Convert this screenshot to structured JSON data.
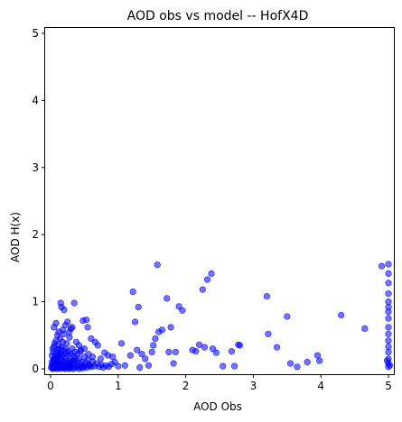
{
  "chart_data": {
    "type": "scatter",
    "title": "AOD obs vs model -- HofX4D",
    "xlabel": "AOD Obs",
    "ylabel": "AOD H(x)",
    "xlim": [
      -0.08,
      5.08
    ],
    "ylim": [
      -0.08,
      5.08
    ],
    "xticks": [
      "0",
      "1",
      "2",
      "3",
      "4",
      "5"
    ],
    "yticks": [
      "0",
      "1",
      "2",
      "3",
      "4",
      "5"
    ],
    "grid": false,
    "marker_color": "#0000ff",
    "marker_alpha": 0.55,
    "series": [
      {
        "points": [
          [
            0.01,
            0.02
          ],
          [
            0.02,
            0.05
          ],
          [
            0.03,
            0.01
          ],
          [
            0.04,
            0.08
          ],
          [
            0.05,
            0.03
          ],
          [
            0.06,
            0.12
          ],
          [
            0.07,
            0.04
          ],
          [
            0.08,
            0.15
          ],
          [
            0.09,
            0.06
          ],
          [
            0.1,
            0.02
          ],
          [
            0.11,
            0.09
          ],
          [
            0.12,
            0.18
          ],
          [
            0.13,
            0.05
          ],
          [
            0.14,
            0.11
          ],
          [
            0.15,
            0.03
          ],
          [
            0.16,
            0.22
          ],
          [
            0.17,
            0.07
          ],
          [
            0.18,
            0.13
          ],
          [
            0.19,
            0.04
          ],
          [
            0.2,
            0.1
          ],
          [
            0.21,
            0.02
          ],
          [
            0.22,
            0.16
          ],
          [
            0.23,
            0.06
          ],
          [
            0.24,
            0.09
          ],
          [
            0.25,
            0.03
          ],
          [
            0.26,
            0.12
          ],
          [
            0.27,
            0.05
          ],
          [
            0.28,
            0.08
          ],
          [
            0.29,
            0.02
          ],
          [
            0.3,
            0.11
          ],
          [
            0.02,
            0.2
          ],
          [
            0.04,
            0.25
          ],
          [
            0.03,
            0.3
          ],
          [
            0.05,
            0.33
          ],
          [
            0.06,
            0.38
          ],
          [
            0.08,
            0.42
          ],
          [
            0.1,
            0.28
          ],
          [
            0.12,
            0.35
          ],
          [
            0.14,
            0.45
          ],
          [
            0.16,
            0.32
          ],
          [
            0.18,
            0.4
          ],
          [
            0.2,
            0.52
          ],
          [
            0.22,
            0.3
          ],
          [
            0.24,
            0.38
          ],
          [
            0.26,
            0.26
          ],
          [
            0.28,
            0.47
          ],
          [
            0.3,
            0.22
          ],
          [
            0.32,
            0.3
          ],
          [
            0.34,
            0.18
          ],
          [
            0.36,
            0.25
          ],
          [
            0.03,
            0.0
          ],
          [
            0.06,
            0.01
          ],
          [
            0.09,
            0.0
          ],
          [
            0.12,
            0.01
          ],
          [
            0.15,
            0.0
          ],
          [
            0.18,
            0.02
          ],
          [
            0.21,
            0.0
          ],
          [
            0.24,
            0.01
          ],
          [
            0.27,
            0.0
          ],
          [
            0.3,
            0.02
          ],
          [
            0.33,
            0.0
          ],
          [
            0.36,
            0.01
          ],
          [
            0.39,
            0.03
          ],
          [
            0.42,
            0.0
          ],
          [
            0.45,
            0.02
          ],
          [
            0.48,
            0.01
          ],
          [
            0.51,
            0.04
          ],
          [
            0.54,
            0.02
          ],
          [
            0.57,
            0.06
          ],
          [
            0.6,
            0.03
          ],
          [
            0.35,
            0.08
          ],
          [
            0.38,
            0.12
          ],
          [
            0.4,
            0.05
          ],
          [
            0.42,
            0.15
          ],
          [
            0.44,
            0.07
          ],
          [
            0.46,
            0.1
          ],
          [
            0.48,
            0.04
          ],
          [
            0.5,
            0.18
          ],
          [
            0.52,
            0.09
          ],
          [
            0.55,
            0.13
          ],
          [
            0.58,
            0.05
          ],
          [
            0.62,
            0.11
          ],
          [
            0.65,
            0.04
          ],
          [
            0.68,
            0.08
          ],
          [
            0.72,
            0.03
          ],
          [
            0.75,
            0.06
          ],
          [
            0.78,
            0.02
          ],
          [
            0.82,
            0.05
          ],
          [
            0.86,
            0.03
          ],
          [
            0.9,
            0.07
          ],
          [
            0.05,
            0.62
          ],
          [
            0.08,
            0.68
          ],
          [
            0.12,
            0.55
          ],
          [
            0.15,
            0.98
          ],
          [
            0.16,
            0.92
          ],
          [
            0.2,
            0.88
          ],
          [
            0.25,
            0.7
          ],
          [
            0.28,
            0.55
          ],
          [
            0.3,
            0.6
          ],
          [
            0.35,
            0.98
          ],
          [
            0.22,
            0.65
          ],
          [
            0.18,
            0.58
          ],
          [
            0.1,
            0.5
          ],
          [
            0.32,
            0.62
          ],
          [
            0.38,
            0.4
          ],
          [
            0.42,
            0.35
          ],
          [
            0.45,
            0.28
          ],
          [
            0.48,
            0.72
          ],
          [
            0.53,
            0.73
          ],
          [
            0.55,
            0.62
          ],
          [
            0.5,
            0.3
          ],
          [
            0.56,
            0.22
          ],
          [
            0.6,
            0.45
          ],
          [
            0.62,
            0.18
          ],
          [
            0.66,
            0.4
          ],
          [
            0.7,
            0.35
          ],
          [
            0.74,
            0.15
          ],
          [
            0.8,
            0.24
          ],
          [
            0.85,
            0.2
          ],
          [
            0.92,
            0.18
          ],
          [
            0.95,
            0.1
          ],
          [
            1.0,
            0.04
          ],
          [
            1.05,
            0.38
          ],
          [
            1.1,
            0.05
          ],
          [
            1.18,
            0.2
          ],
          [
            1.22,
            1.15
          ],
          [
            1.25,
            0.7
          ],
          [
            1.28,
            0.28
          ],
          [
            1.3,
            0.92
          ],
          [
            1.32,
            0.02
          ],
          [
            1.35,
            0.22
          ],
          [
            1.4,
            0.15
          ],
          [
            1.45,
            0.05
          ],
          [
            1.5,
            0.25
          ],
          [
            1.52,
            0.35
          ],
          [
            1.55,
            0.45
          ],
          [
            1.58,
            1.55
          ],
          [
            1.6,
            0.55
          ],
          [
            1.65,
            0.58
          ],
          [
            1.72,
            1.05
          ],
          [
            1.75,
            0.25
          ],
          [
            1.78,
            0.62
          ],
          [
            1.82,
            0.08
          ],
          [
            1.85,
            0.25
          ],
          [
            1.9,
            0.93
          ],
          [
            1.95,
            0.87
          ],
          [
            2.1,
            0.28
          ],
          [
            2.15,
            0.26
          ],
          [
            2.2,
            0.36
          ],
          [
            2.25,
            1.18
          ],
          [
            2.28,
            0.32
          ],
          [
            2.32,
            1.33
          ],
          [
            2.38,
            1.42
          ],
          [
            2.4,
            0.3
          ],
          [
            2.45,
            0.24
          ],
          [
            2.55,
            0.04
          ],
          [
            2.68,
            0.26
          ],
          [
            2.72,
            0.04
          ],
          [
            2.78,
            0.36
          ],
          [
            2.8,
            0.35
          ],
          [
            3.2,
            1.08
          ],
          [
            3.22,
            0.52
          ],
          [
            3.35,
            0.32
          ],
          [
            3.5,
            0.78
          ],
          [
            3.55,
            0.08
          ],
          [
            3.65,
            0.03
          ],
          [
            3.8,
            0.1
          ],
          [
            3.95,
            0.2
          ],
          [
            3.98,
            0.12
          ],
          [
            4.3,
            0.8
          ],
          [
            4.65,
            0.6
          ],
          [
            4.9,
            1.53
          ],
          [
            5.0,
            1.56
          ],
          [
            5.0,
            1.42
          ],
          [
            5.0,
            1.28
          ],
          [
            5.0,
            1.12
          ],
          [
            5.0,
            1.0
          ],
          [
            5.0,
            0.92
          ],
          [
            5.0,
            0.85
          ],
          [
            5.0,
            0.75
          ],
          [
            5.0,
            0.62
          ],
          [
            5.0,
            0.52
          ],
          [
            5.0,
            0.42
          ],
          [
            5.0,
            0.33
          ],
          [
            5.0,
            0.25
          ],
          [
            5.0,
            0.15
          ],
          [
            5.0,
            0.08
          ],
          [
            5.0,
            0.03
          ],
          [
            4.98,
            0.12
          ],
          [
            5.02,
            0.05
          ],
          [
            0.05,
            0.14
          ],
          [
            0.07,
            0.21
          ],
          [
            0.09,
            0.17
          ],
          [
            0.11,
            0.24
          ],
          [
            0.13,
            0.29
          ],
          [
            0.02,
            0.1
          ],
          [
            0.04,
            0.14
          ],
          [
            0.06,
            0.06
          ],
          [
            0.08,
            0.09
          ],
          [
            0.1,
            0.13
          ],
          [
            0.4,
            0.22
          ],
          [
            0.44,
            0.26
          ],
          [
            0.36,
            0.15
          ],
          [
            0.33,
            0.12
          ],
          [
            0.31,
            0.08
          ],
          [
            0.26,
            0.2
          ],
          [
            0.23,
            0.24
          ],
          [
            0.19,
            0.27
          ],
          [
            0.17,
            0.19
          ],
          [
            0.14,
            0.22
          ]
        ]
      }
    ]
  }
}
